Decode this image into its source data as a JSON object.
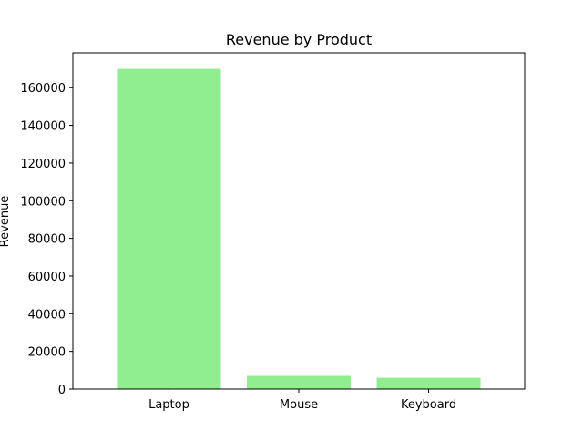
{
  "chart_data": {
    "type": "bar",
    "title": "Revenue by Product",
    "xlabel": "",
    "ylabel": "Revenue",
    "categories": [
      "Laptop",
      "Mouse",
      "Keyboard"
    ],
    "values": [
      170000,
      7000,
      6000
    ],
    "ylim": [
      0,
      178500
    ],
    "yticks": [
      0,
      20000,
      40000,
      60000,
      80000,
      100000,
      120000,
      140000,
      160000
    ],
    "ytick_labels": [
      "0",
      "20000",
      "40000",
      "60000",
      "80000",
      "100000",
      "120000",
      "140000",
      "160000"
    ],
    "bar_color": "#90ee90",
    "grid": false,
    "legend": "none"
  }
}
